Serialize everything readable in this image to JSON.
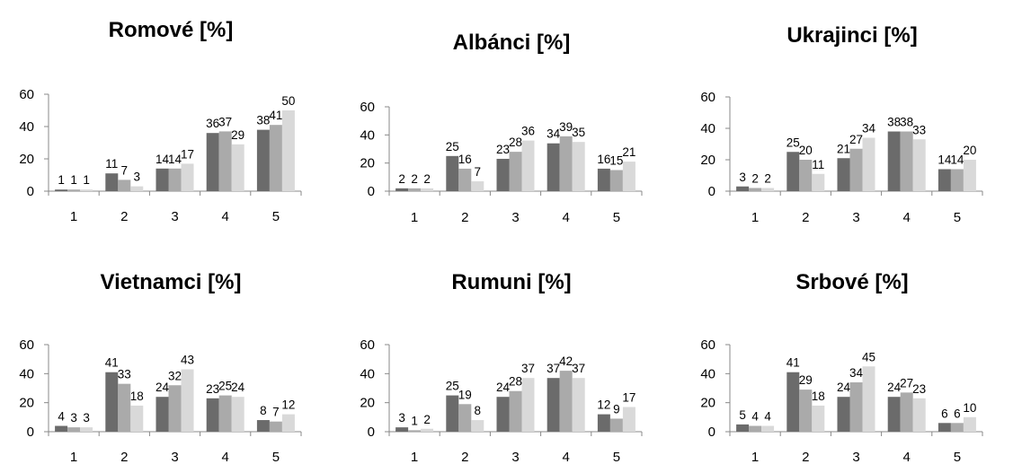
{
  "chart_data": [
    {
      "type": "bar",
      "title": "Romové [%]",
      "categories": [
        "1",
        "2",
        "3",
        "4",
        "5"
      ],
      "series": [
        {
          "values": [
            1,
            11,
            14,
            36,
            38
          ]
        },
        {
          "values": [
            1,
            7,
            14,
            37,
            41
          ]
        },
        {
          "values": [
            1,
            3,
            17,
            29,
            50
          ]
        }
      ],
      "yticks": [
        "0",
        "20",
        "40",
        "60"
      ],
      "ylim": [
        0,
        60
      ],
      "grid": false,
      "legend": "none"
    },
    {
      "type": "bar",
      "title": "Albánci [%]",
      "categories": [
        "1",
        "2",
        "3",
        "4",
        "5"
      ],
      "series": [
        {
          "values": [
            2,
            25,
            23,
            34,
            16
          ]
        },
        {
          "values": [
            2,
            16,
            28,
            39,
            15
          ]
        },
        {
          "values": [
            2,
            7,
            36,
            35,
            21
          ]
        }
      ],
      "yticks": [
        "0",
        "20",
        "40",
        "60"
      ],
      "ylim": [
        0,
        60
      ],
      "grid": false,
      "legend": "none"
    },
    {
      "type": "bar",
      "title": "Ukrajinci [%]",
      "categories": [
        "1",
        "2",
        "3",
        "4",
        "5"
      ],
      "series": [
        {
          "values": [
            3,
            25,
            21,
            38,
            14
          ]
        },
        {
          "values": [
            2,
            20,
            27,
            38,
            14
          ]
        },
        {
          "values": [
            2,
            11,
            34,
            33,
            20
          ]
        }
      ],
      "yticks": [
        "0",
        "20",
        "40",
        "60"
      ],
      "ylim": [
        0,
        60
      ],
      "grid": false,
      "legend": "none"
    },
    {
      "type": "bar",
      "title": "Vietnamci [%]",
      "categories": [
        "1",
        "2",
        "3",
        "4",
        "5"
      ],
      "series": [
        {
          "values": [
            4,
            41,
            24,
            23,
            8
          ]
        },
        {
          "values": [
            3,
            33,
            32,
            25,
            7
          ]
        },
        {
          "values": [
            3,
            18,
            43,
            24,
            12
          ]
        }
      ],
      "yticks": [
        "0",
        "20",
        "40",
        "60"
      ],
      "ylim": [
        0,
        60
      ],
      "grid": false,
      "legend": "none"
    },
    {
      "type": "bar",
      "title": "Rumuni [%]",
      "categories": [
        "1",
        "2",
        "3",
        "4",
        "5"
      ],
      "series": [
        {
          "values": [
            3,
            25,
            24,
            37,
            12
          ]
        },
        {
          "values": [
            1,
            19,
            28,
            42,
            9
          ]
        },
        {
          "values": [
            2,
            8,
            37,
            37,
            17
          ]
        }
      ],
      "yticks": [
        "0",
        "20",
        "40",
        "60"
      ],
      "ylim": [
        0,
        60
      ],
      "grid": false,
      "legend": "none"
    },
    {
      "type": "bar",
      "title": "Srbové [%]",
      "categories": [
        "1",
        "2",
        "3",
        "4",
        "5"
      ],
      "series": [
        {
          "values": [
            5,
            41,
            24,
            24,
            6
          ]
        },
        {
          "values": [
            4,
            29,
            34,
            27,
            6
          ]
        },
        {
          "values": [
            4,
            18,
            45,
            23,
            10
          ]
        }
      ],
      "yticks": [
        "0",
        "20",
        "40",
        "60"
      ],
      "ylim": [
        0,
        60
      ],
      "grid": false,
      "legend": "none"
    }
  ],
  "colors": {
    "series": [
      "#6b6b6b",
      "#aaaaaa",
      "#d9d9d9"
    ],
    "axis": "#888888",
    "text": "#000000"
  }
}
